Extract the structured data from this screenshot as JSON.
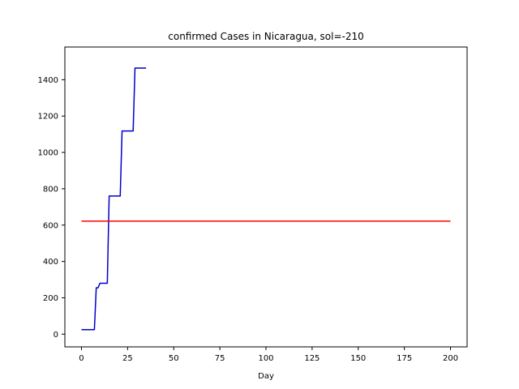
{
  "chart_data": {
    "type": "line",
    "title": "confirmed Cases in Nicaragua, sol=-210",
    "xlabel": "Day",
    "ylabel": "",
    "xlim": [
      -9,
      209
    ],
    "ylim": [
      -70,
      1580
    ],
    "xticks": [
      0,
      25,
      50,
      75,
      100,
      125,
      150,
      175,
      200
    ],
    "yticks": [
      0,
      200,
      400,
      600,
      800,
      1000,
      1200,
      1400
    ],
    "grid": false,
    "legend": "none",
    "series": [
      {
        "color": "#0000cc",
        "x": [
          0,
          7,
          8,
          9,
          10,
          14,
          15,
          21,
          22,
          28,
          29,
          35
        ],
        "y": [
          25,
          25,
          255,
          255,
          280,
          280,
          760,
          760,
          1118,
          1118,
          1464,
          1464
        ]
      },
      {
        "color": "#ff0000",
        "x": [
          0,
          200
        ],
        "y": [
          622,
          622
        ]
      }
    ]
  }
}
